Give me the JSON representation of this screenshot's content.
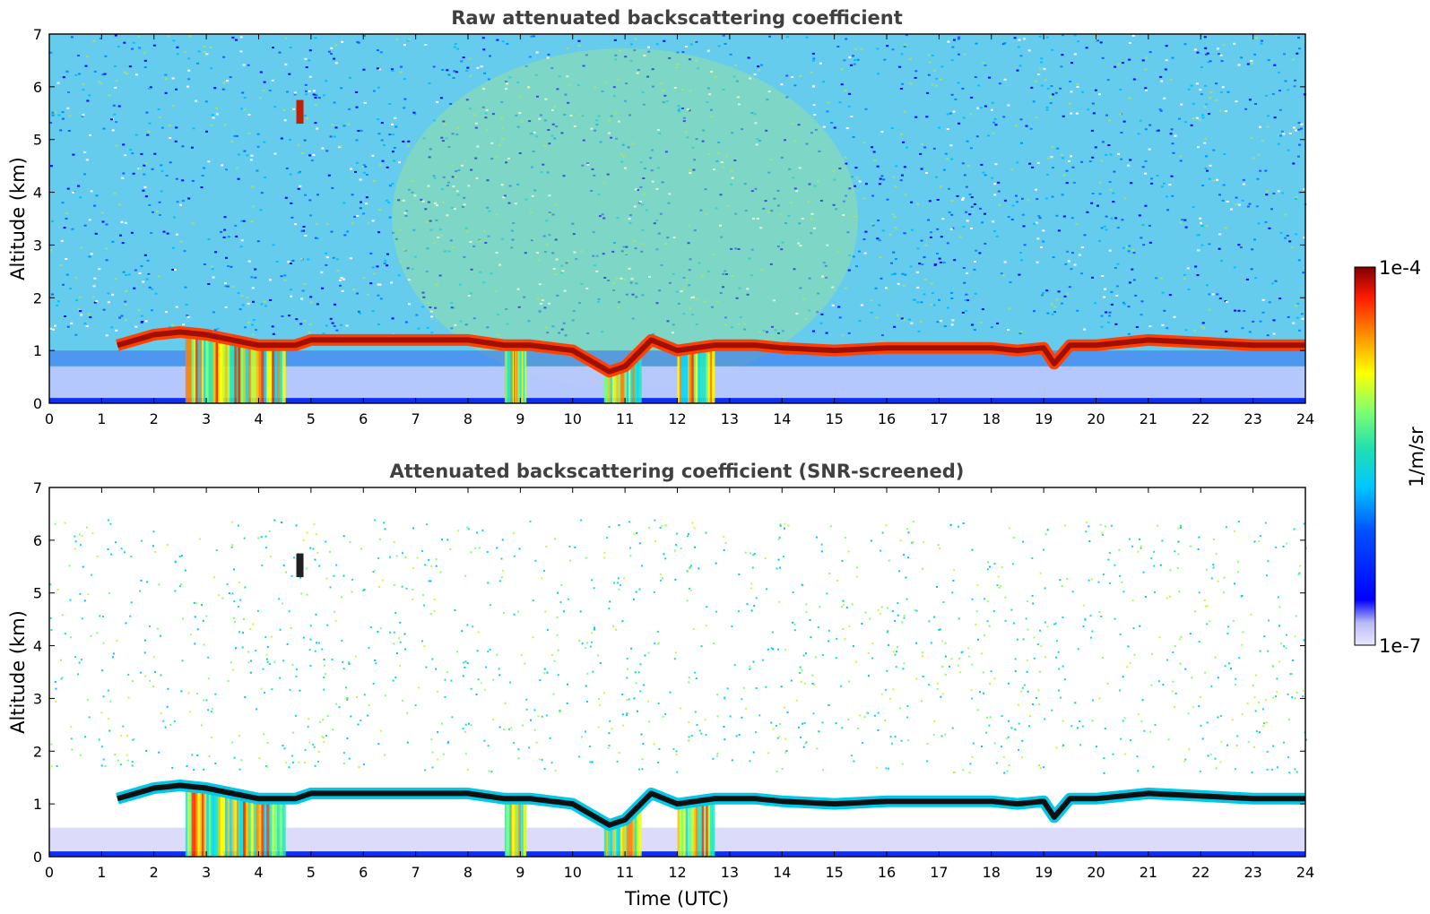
{
  "chart_data": [
    {
      "type": "heatmap",
      "title": "Raw attenuated backscattering coefficient",
      "xlabel": "",
      "ylabel": "Altitude (km)",
      "xlim": [
        0,
        24
      ],
      "ylim": [
        0,
        7
      ],
      "xticks": [
        0,
        1,
        2,
        3,
        4,
        5,
        6,
        7,
        8,
        9,
        10,
        11,
        12,
        13,
        14,
        15,
        16,
        17,
        18,
        19,
        20,
        21,
        22,
        23,
        24
      ],
      "yticks": [
        0,
        1,
        2,
        3,
        4,
        5,
        6,
        7
      ],
      "screened": false,
      "cloud_base_km": [
        [
          1.3,
          1.1
        ],
        [
          2.0,
          1.3
        ],
        [
          2.5,
          1.35
        ],
        [
          3.0,
          1.3
        ],
        [
          3.5,
          1.2
        ],
        [
          4.0,
          1.1
        ],
        [
          4.7,
          1.1
        ],
        [
          5.0,
          1.2
        ],
        [
          6.0,
          1.2
        ],
        [
          7.0,
          1.2
        ],
        [
          8.0,
          1.2
        ],
        [
          8.7,
          1.1
        ],
        [
          9.2,
          1.1
        ],
        [
          10.0,
          1.0
        ],
        [
          10.7,
          0.6
        ],
        [
          11.0,
          0.7
        ],
        [
          11.5,
          1.2
        ],
        [
          12.0,
          1.0
        ],
        [
          12.7,
          1.1
        ],
        [
          13.5,
          1.1
        ],
        [
          14.0,
          1.05
        ],
        [
          15.0,
          1.0
        ],
        [
          16.0,
          1.05
        ],
        [
          17.0,
          1.05
        ],
        [
          18.0,
          1.05
        ],
        [
          18.5,
          1.0
        ],
        [
          19.0,
          1.05
        ],
        [
          19.2,
          0.75
        ],
        [
          19.5,
          1.1
        ],
        [
          20.0,
          1.1
        ],
        [
          21.0,
          1.2
        ],
        [
          22.0,
          1.15
        ],
        [
          23.0,
          1.1
        ],
        [
          24.0,
          1.1
        ]
      ]
    },
    {
      "type": "heatmap",
      "title": "Attenuated backscattering coefficient (SNR-screened)",
      "xlabel": "Time (UTC)",
      "ylabel": "Altitude (km)",
      "xlim": [
        0,
        24
      ],
      "ylim": [
        0,
        7
      ],
      "xticks": [
        0,
        1,
        2,
        3,
        4,
        5,
        6,
        7,
        8,
        9,
        10,
        11,
        12,
        13,
        14,
        15,
        16,
        17,
        18,
        19,
        20,
        21,
        22,
        23,
        24
      ],
      "yticks": [
        0,
        1,
        2,
        3,
        4,
        5,
        6,
        7
      ],
      "screened": true,
      "cloud_base_km": [
        [
          1.3,
          1.1
        ],
        [
          2.0,
          1.3
        ],
        [
          2.5,
          1.35
        ],
        [
          3.0,
          1.3
        ],
        [
          3.5,
          1.2
        ],
        [
          4.0,
          1.1
        ],
        [
          4.7,
          1.1
        ],
        [
          5.0,
          1.2
        ],
        [
          6.0,
          1.2
        ],
        [
          7.0,
          1.2
        ],
        [
          8.0,
          1.2
        ],
        [
          8.7,
          1.1
        ],
        [
          9.2,
          1.1
        ],
        [
          10.0,
          1.0
        ],
        [
          10.7,
          0.6
        ],
        [
          11.0,
          0.7
        ],
        [
          11.5,
          1.2
        ],
        [
          12.0,
          1.0
        ],
        [
          12.7,
          1.1
        ],
        [
          13.5,
          1.1
        ],
        [
          14.0,
          1.05
        ],
        [
          15.0,
          1.0
        ],
        [
          16.0,
          1.05
        ],
        [
          17.0,
          1.05
        ],
        [
          18.0,
          1.05
        ],
        [
          18.5,
          1.0
        ],
        [
          19.0,
          1.05
        ],
        [
          19.2,
          0.75
        ],
        [
          19.5,
          1.1
        ],
        [
          20.0,
          1.1
        ],
        [
          21.0,
          1.2
        ],
        [
          22.0,
          1.15
        ],
        [
          23.0,
          1.1
        ],
        [
          24.0,
          1.1
        ]
      ]
    }
  ],
  "colorbar": {
    "label": "1/m/sr",
    "max_label": "1e-4",
    "min_label": "1e-7",
    "colormap": "jet",
    "scale": "log"
  },
  "colors": {
    "title": "#404040",
    "cloud": "#8b0000",
    "background_noise": "#29b6e8"
  }
}
